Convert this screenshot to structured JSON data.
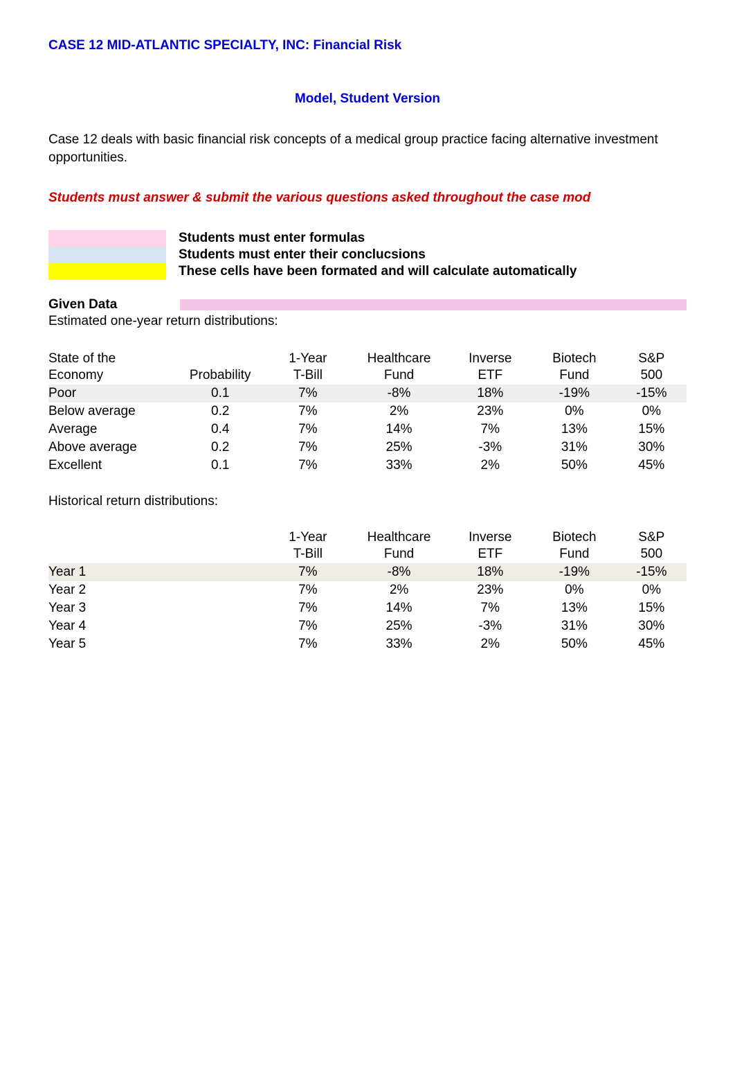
{
  "title": "CASE 12 MID-ATLANTIC SPECIALTY, INC: Financial Risk",
  "subtitle": "Model, Student Version",
  "intro": "Case 12 deals with basic financial risk concepts of a medical group practice facing alternative investment opportunities.",
  "red_note": "Students must answer & submit the various questions asked throughout the case mod",
  "legend": {
    "pink": "Students must enter formulas",
    "blue": "Students must enter their conclucsions",
    "yellow": "These cells have been formated and will calculate automatically"
  },
  "given_data_heading": "Given Data",
  "given_data_sub": "Estimated one-year return distributions:",
  "table1": {
    "headers_top": [
      "State of the",
      "",
      "1-Year",
      "Healthcare",
      "Inverse",
      "Biotech",
      "S&P"
    ],
    "headers_bot": [
      "Economy",
      "Probability",
      "T-Bill",
      "Fund",
      "ETF",
      "Fund",
      "500"
    ],
    "rows": [
      {
        "label": "Poor",
        "prob": "0.1",
        "tbill": "7%",
        "hc": "-8%",
        "inv": "18%",
        "bio": "-19%",
        "sp": "-15%",
        "shade": true
      },
      {
        "label": "Below average",
        "prob": "0.2",
        "tbill": "7%",
        "hc": "2%",
        "inv": "23%",
        "bio": "0%",
        "sp": "0%"
      },
      {
        "label": "Average",
        "prob": "0.4",
        "tbill": "7%",
        "hc": "14%",
        "inv": "7%",
        "bio": "13%",
        "sp": "15%"
      },
      {
        "label": "Above average",
        "prob": "0.2",
        "tbill": "7%",
        "hc": "25%",
        "inv": "-3%",
        "bio": "31%",
        "sp": "30%"
      },
      {
        "label": "Excellent",
        "prob": "0.1",
        "tbill": "7%",
        "hc": "33%",
        "inv": "2%",
        "bio": "50%",
        "sp": "45%"
      }
    ]
  },
  "hist_label": "Historical return distributions:",
  "table2": {
    "headers_top": [
      "",
      "",
      "1-Year",
      "Healthcare",
      "Inverse",
      "Biotech",
      "S&P"
    ],
    "headers_bot": [
      "",
      "",
      "T-Bill",
      "Fund",
      "ETF",
      "Fund",
      "500"
    ],
    "rows": [
      {
        "label": "Year 1",
        "tbill": "7%",
        "hc": "-8%",
        "inv": "18%",
        "bio": "-19%",
        "sp": "-15%",
        "shade": true
      },
      {
        "label": "Year 2",
        "tbill": "7%",
        "hc": "2%",
        "inv": "23%",
        "bio": "0%",
        "sp": "0%"
      },
      {
        "label": "Year 3",
        "tbill": "7%",
        "hc": "14%",
        "inv": "7%",
        "bio": "13%",
        "sp": "15%"
      },
      {
        "label": "Year 4",
        "tbill": "7%",
        "hc": "25%",
        "inv": "-3%",
        "bio": "31%",
        "sp": "30%"
      },
      {
        "label": "Year 5",
        "tbill": "7%",
        "hc": "33%",
        "inv": "2%",
        "bio": "50%",
        "sp": "45%"
      }
    ]
  },
  "colors": {
    "link_blue": "#0000d0",
    "red": "#d00000",
    "swatch_pink": "#fbd4e8",
    "swatch_blue": "#d6e3f3",
    "swatch_yellow": "#ffff00",
    "row_grey": "#eeeeee",
    "row_tan": "#f0ece6",
    "pink_strip": "#f5c4e6"
  }
}
